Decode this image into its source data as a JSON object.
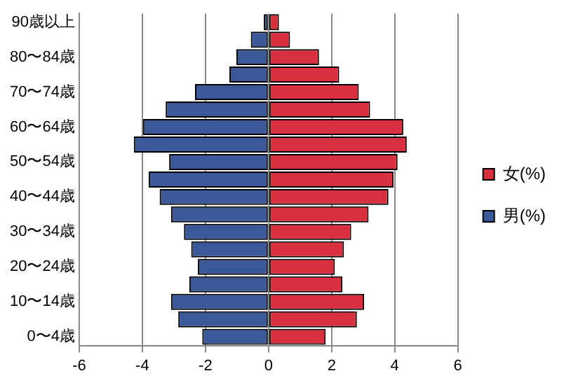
{
  "chart_data": {
    "type": "bar",
    "orientation": "horizontal",
    "stacked": true,
    "categories": [
      "90歳以上",
      null,
      "80〜84歳",
      null,
      "70〜74歳",
      null,
      "60〜64歳",
      null,
      "50〜54歳",
      null,
      "40〜44歳",
      null,
      "30〜34歳",
      null,
      "20〜24歳",
      null,
      "10〜14歳",
      null,
      "0〜4歳"
    ],
    "series": [
      {
        "name": "女(%)",
        "color": "#d9303f",
        "values": [
          0.33,
          0.68,
          1.6,
          2.24,
          2.86,
          3.22,
          4.27,
          4.38,
          4.09,
          3.96,
          3.8,
          3.17,
          2.62,
          2.39,
          2.1,
          2.34,
          3.03,
          2.8,
          1.81
        ]
      },
      {
        "name": "男(%)",
        "color": "#3b5898",
        "values": [
          -0.15,
          -0.56,
          -1.02,
          -1.24,
          -2.33,
          -3.26,
          -3.98,
          -4.27,
          -3.15,
          -3.8,
          -3.45,
          -3.09,
          -2.68,
          -2.45,
          -2.24,
          -2.51,
          -3.09,
          -2.86,
          -2.1
        ]
      }
    ],
    "xlim": [
      -6,
      6
    ],
    "xticks": [
      -6,
      -4,
      -2,
      0,
      2,
      4,
      6
    ],
    "grid": "x",
    "legend": "right"
  }
}
